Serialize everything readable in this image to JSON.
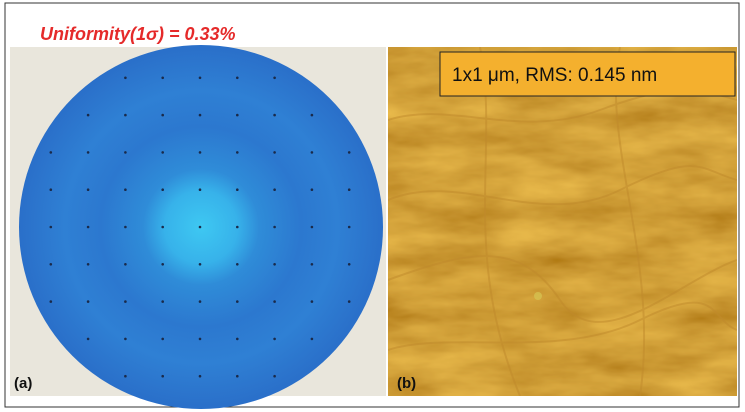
{
  "panels": [
    {
      "title": "Uniformity(1σ) = 0.33%",
      "label": "(a)"
    },
    {
      "annotation": "1x1 μm, RMS: 0.145 nm",
      "label": "(b)"
    }
  ]
}
